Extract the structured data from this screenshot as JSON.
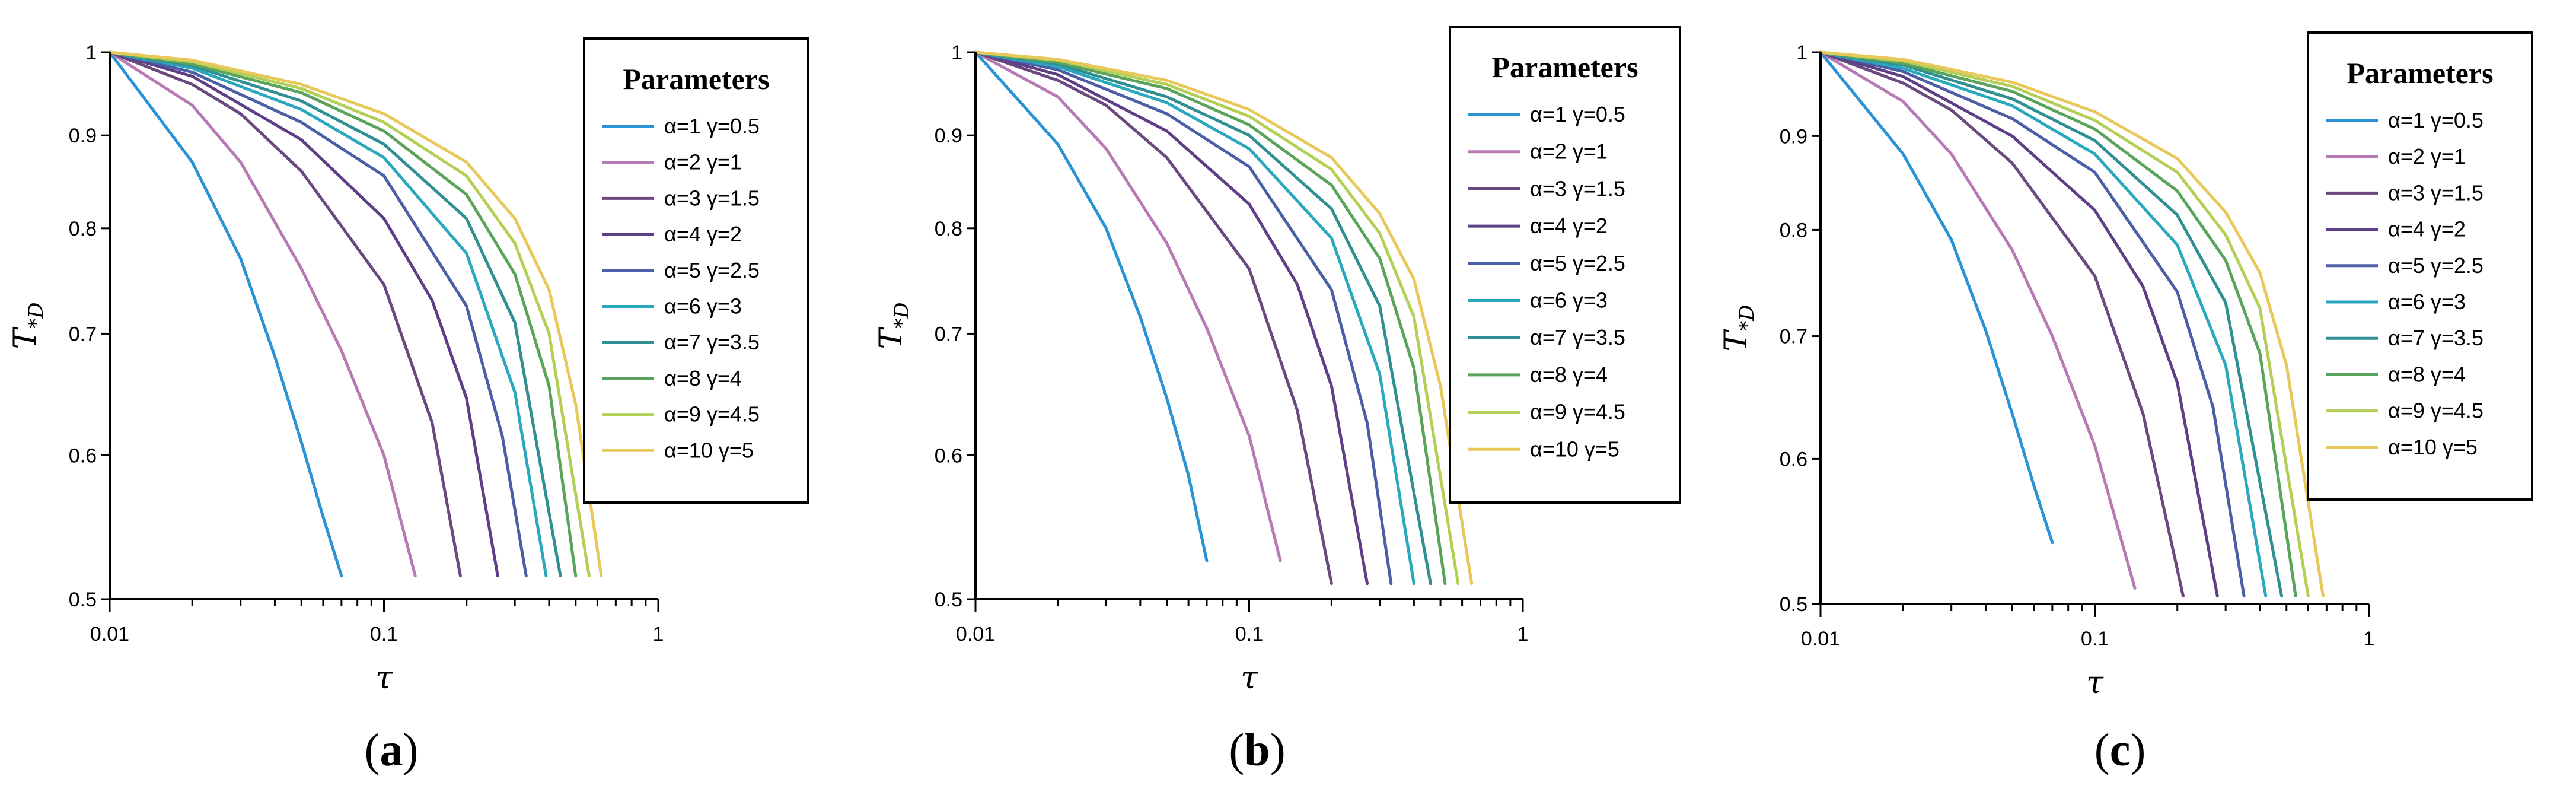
{
  "chart_data": [
    {
      "type": "line",
      "panel_label": "a",
      "xlabel": "τ",
      "ylabel": "T",
      "ylabel_sub": "*D",
      "x_scale": "log",
      "y_scale": "log",
      "xlim": [
        0.01,
        1
      ],
      "ylim": [
        0.5,
        1
      ],
      "x_ticks": [
        "0.01",
        "0.1",
        "1"
      ],
      "y_ticks": [
        "0.5",
        "0.6",
        "0.7",
        "0.8",
        "0.9",
        "1"
      ],
      "legend": {
        "title": "Parameters",
        "placement": "top-right"
      },
      "series": [
        {
          "name": "α=1  γ=0.5",
          "color": "#2a93d5",
          "x": [
            0.01,
            0.02,
            0.03,
            0.04,
            0.05,
            0.06,
            0.07
          ],
          "y": [
            1.0,
            0.87,
            0.77,
            0.68,
            0.61,
            0.555,
            0.515
          ]
        },
        {
          "name": "α=2  γ=1",
          "color": "#b77ab5",
          "x": [
            0.01,
            0.02,
            0.03,
            0.05,
            0.07,
            0.1,
            0.13
          ],
          "y": [
            1.0,
            0.935,
            0.87,
            0.76,
            0.685,
            0.6,
            0.515
          ]
        },
        {
          "name": "α=3  γ=1.5",
          "color": "#6a4a7e",
          "x": [
            0.01,
            0.02,
            0.03,
            0.05,
            0.1,
            0.15,
            0.19
          ],
          "y": [
            1.0,
            0.96,
            0.925,
            0.86,
            0.745,
            0.625,
            0.515
          ]
        },
        {
          "name": "α=4  γ=2",
          "color": "#5e3f86",
          "x": [
            0.01,
            0.02,
            0.05,
            0.1,
            0.15,
            0.2,
            0.26
          ],
          "y": [
            1.0,
            0.97,
            0.895,
            0.81,
            0.73,
            0.645,
            0.515
          ]
        },
        {
          "name": "α=5  γ=2.5",
          "color": "#4a5fa5",
          "x": [
            0.01,
            0.02,
            0.05,
            0.1,
            0.2,
            0.27,
            0.33
          ],
          "y": [
            1.0,
            0.975,
            0.915,
            0.855,
            0.725,
            0.615,
            0.515
          ]
        },
        {
          "name": "α=6  γ=3",
          "color": "#2aa8bd",
          "x": [
            0.01,
            0.02,
            0.05,
            0.1,
            0.2,
            0.3,
            0.39
          ],
          "y": [
            1.0,
            0.98,
            0.93,
            0.875,
            0.775,
            0.65,
            0.515
          ]
        },
        {
          "name": "α=7  γ=3.5",
          "color": "#2f8f92",
          "x": [
            0.01,
            0.02,
            0.05,
            0.1,
            0.2,
            0.3,
            0.44
          ],
          "y": [
            1.0,
            0.983,
            0.94,
            0.89,
            0.81,
            0.71,
            0.515
          ]
        },
        {
          "name": "α=8  γ=4",
          "color": "#5aa35a",
          "x": [
            0.01,
            0.02,
            0.05,
            0.1,
            0.2,
            0.3,
            0.4,
            0.5
          ],
          "y": [
            1.0,
            0.985,
            0.95,
            0.905,
            0.835,
            0.755,
            0.655,
            0.515
          ]
        },
        {
          "name": "α=9  γ=4.5",
          "color": "#b3cf55",
          "x": [
            0.01,
            0.02,
            0.05,
            0.1,
            0.2,
            0.3,
            0.4,
            0.56
          ],
          "y": [
            1.0,
            0.988,
            0.955,
            0.915,
            0.855,
            0.785,
            0.7,
            0.515
          ]
        },
        {
          "name": "α=10  γ=5",
          "color": "#e8c85a",
          "x": [
            0.01,
            0.02,
            0.05,
            0.1,
            0.2,
            0.3,
            0.4,
            0.5,
            0.62
          ],
          "y": [
            1.0,
            0.99,
            0.96,
            0.925,
            0.87,
            0.81,
            0.74,
            0.64,
            0.515
          ]
        }
      ]
    },
    {
      "type": "line",
      "panel_label": "b",
      "xlabel": "τ",
      "ylabel": "T",
      "ylabel_sub": "*D",
      "x_scale": "log",
      "y_scale": "log",
      "xlim": [
        0.01,
        1
      ],
      "ylim": [
        0.5,
        1
      ],
      "x_ticks": [
        "0.01",
        "0.1",
        "1"
      ],
      "y_ticks": [
        "0.5",
        "0.6",
        "0.7",
        "0.8",
        "0.9",
        "1"
      ],
      "legend": {
        "title": "Parameters",
        "placement": "top-right"
      },
      "series": [
        {
          "name": "α=1  γ=0.5",
          "color": "#2a93d5",
          "x": [
            0.01,
            0.02,
            0.03,
            0.04,
            0.05,
            0.06,
            0.07
          ],
          "y": [
            1.0,
            0.89,
            0.8,
            0.715,
            0.645,
            0.585,
            0.525
          ]
        },
        {
          "name": "α=2  γ=1",
          "color": "#b77ab5",
          "x": [
            0.01,
            0.02,
            0.03,
            0.05,
            0.07,
            0.1,
            0.13
          ],
          "y": [
            1.0,
            0.945,
            0.885,
            0.785,
            0.705,
            0.615,
            0.525
          ]
        },
        {
          "name": "α=3  γ=1.5",
          "color": "#6a4a7e",
          "x": [
            0.01,
            0.02,
            0.03,
            0.05,
            0.1,
            0.15,
            0.2
          ],
          "y": [
            1.0,
            0.965,
            0.935,
            0.875,
            0.76,
            0.635,
            0.51
          ]
        },
        {
          "name": "α=4  γ=2",
          "color": "#5e3f86",
          "x": [
            0.01,
            0.02,
            0.05,
            0.1,
            0.15,
            0.2,
            0.27
          ],
          "y": [
            1.0,
            0.972,
            0.905,
            0.825,
            0.745,
            0.655,
            0.51
          ]
        },
        {
          "name": "α=5  γ=2.5",
          "color": "#4a5fa5",
          "x": [
            0.01,
            0.02,
            0.05,
            0.1,
            0.2,
            0.27,
            0.33
          ],
          "y": [
            1.0,
            0.978,
            0.925,
            0.865,
            0.74,
            0.625,
            0.51
          ]
        },
        {
          "name": "α=6  γ=3",
          "color": "#2aa8bd",
          "x": [
            0.01,
            0.02,
            0.05,
            0.1,
            0.2,
            0.3,
            0.4
          ],
          "y": [
            1.0,
            0.982,
            0.938,
            0.885,
            0.79,
            0.665,
            0.51
          ]
        },
        {
          "name": "α=7  γ=3.5",
          "color": "#2f8f92",
          "x": [
            0.01,
            0.02,
            0.05,
            0.1,
            0.2,
            0.3,
            0.46
          ],
          "y": [
            1.0,
            0.985,
            0.945,
            0.9,
            0.82,
            0.725,
            0.51
          ]
        },
        {
          "name": "α=8  γ=4",
          "color": "#5aa35a",
          "x": [
            0.01,
            0.02,
            0.05,
            0.1,
            0.2,
            0.3,
            0.4,
            0.52
          ],
          "y": [
            1.0,
            0.987,
            0.955,
            0.912,
            0.845,
            0.77,
            0.67,
            0.51
          ]
        },
        {
          "name": "α=9  γ=4.5",
          "color": "#b3cf55",
          "x": [
            0.01,
            0.02,
            0.05,
            0.1,
            0.2,
            0.3,
            0.4,
            0.58
          ],
          "y": [
            1.0,
            0.99,
            0.96,
            0.922,
            0.862,
            0.795,
            0.715,
            0.51
          ]
        },
        {
          "name": "α=10  γ=5",
          "color": "#e8c85a",
          "x": [
            0.01,
            0.02,
            0.05,
            0.1,
            0.2,
            0.3,
            0.4,
            0.5,
            0.65
          ],
          "y": [
            1.0,
            0.991,
            0.965,
            0.93,
            0.875,
            0.815,
            0.75,
            0.655,
            0.51
          ]
        }
      ]
    },
    {
      "type": "line",
      "panel_label": "c",
      "xlabel": "τ",
      "ylabel": "T",
      "ylabel_sub": "*D",
      "x_scale": "log",
      "y_scale": "log",
      "xlim": [
        0.01,
        1
      ],
      "ylim": [
        0.5,
        1
      ],
      "x_ticks": [
        "0.01",
        "0.1",
        "1"
      ],
      "y_ticks": [
        "0.5",
        "0.6",
        "0.7",
        "0.8",
        "0.9",
        "1"
      ],
      "legend": {
        "title": "Parameters",
        "placement": "top-right"
      },
      "series": [
        {
          "name": "α=1  γ=0.5",
          "color": "#2a93d5",
          "x": [
            0.01,
            0.02,
            0.03,
            0.04,
            0.05,
            0.06,
            0.07
          ],
          "y": [
            1.0,
            0.88,
            0.79,
            0.705,
            0.635,
            0.58,
            0.54
          ]
        },
        {
          "name": "α=2  γ=1",
          "color": "#b77ab5",
          "x": [
            0.01,
            0.02,
            0.03,
            0.05,
            0.07,
            0.1,
            0.14
          ],
          "y": [
            1.0,
            0.94,
            0.88,
            0.78,
            0.7,
            0.61,
            0.51
          ]
        },
        {
          "name": "α=3  γ=1.5",
          "color": "#6a4a7e",
          "x": [
            0.01,
            0.02,
            0.03,
            0.05,
            0.1,
            0.15,
            0.21
          ],
          "y": [
            1.0,
            0.962,
            0.93,
            0.87,
            0.755,
            0.635,
            0.505
          ]
        },
        {
          "name": "α=4  γ=2",
          "color": "#5e3f86",
          "x": [
            0.01,
            0.02,
            0.05,
            0.1,
            0.15,
            0.2,
            0.28
          ],
          "y": [
            1.0,
            0.97,
            0.9,
            0.82,
            0.745,
            0.66,
            0.505
          ]
        },
        {
          "name": "α=5  γ=2.5",
          "color": "#4a5fa5",
          "x": [
            0.01,
            0.02,
            0.05,
            0.1,
            0.2,
            0.27,
            0.35
          ],
          "y": [
            1.0,
            0.976,
            0.92,
            0.86,
            0.74,
            0.64,
            0.505
          ]
        },
        {
          "name": "α=6  γ=3",
          "color": "#2aa8bd",
          "x": [
            0.01,
            0.02,
            0.05,
            0.1,
            0.2,
            0.3,
            0.42
          ],
          "y": [
            1.0,
            0.98,
            0.935,
            0.88,
            0.785,
            0.675,
            0.505
          ]
        },
        {
          "name": "α=7  γ=3.5",
          "color": "#2f8f92",
          "x": [
            0.01,
            0.02,
            0.05,
            0.1,
            0.2,
            0.3,
            0.48
          ],
          "y": [
            1.0,
            0.984,
            0.943,
            0.895,
            0.815,
            0.73,
            0.505
          ]
        },
        {
          "name": "α=8  γ=4",
          "color": "#5aa35a",
          "x": [
            0.01,
            0.02,
            0.05,
            0.1,
            0.2,
            0.3,
            0.4,
            0.54
          ],
          "y": [
            1.0,
            0.986,
            0.952,
            0.908,
            0.84,
            0.77,
            0.685,
            0.505
          ]
        },
        {
          "name": "α=9  γ=4.5",
          "color": "#b3cf55",
          "x": [
            0.01,
            0.02,
            0.05,
            0.1,
            0.2,
            0.3,
            0.4,
            0.6
          ],
          "y": [
            1.0,
            0.989,
            0.958,
            0.918,
            0.86,
            0.795,
            0.725,
            0.505
          ]
        },
        {
          "name": "α=10  γ=5",
          "color": "#e8c85a",
          "x": [
            0.01,
            0.02,
            0.05,
            0.1,
            0.2,
            0.3,
            0.4,
            0.5,
            0.68
          ],
          "y": [
            1.0,
            0.991,
            0.963,
            0.928,
            0.875,
            0.818,
            0.758,
            0.675,
            0.505
          ]
        }
      ]
    }
  ]
}
